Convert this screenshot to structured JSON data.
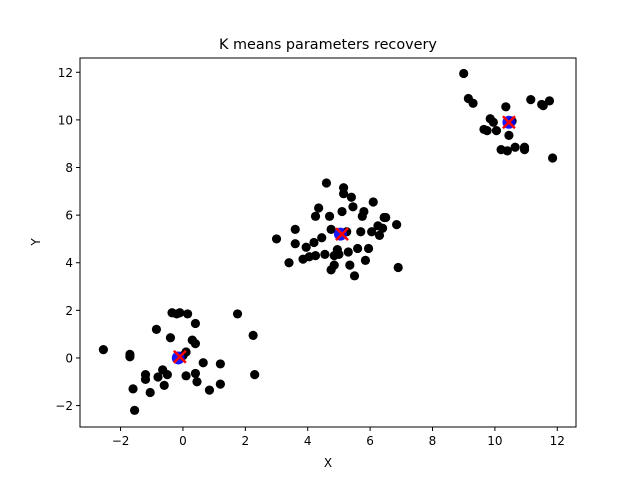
{
  "chart_data": {
    "type": "scatter",
    "title": "K means parameters recovery",
    "xlabel": "X",
    "ylabel": "Y",
    "xlim": [
      -3.3,
      12.6
    ],
    "ylim": [
      -2.9,
      12.6
    ],
    "xticks": [
      -2,
      0,
      2,
      4,
      6,
      8,
      10,
      12
    ],
    "yticks": [
      -2,
      0,
      2,
      4,
      6,
      8,
      10,
      12
    ],
    "grid": false,
    "legend": "none",
    "series": [
      {
        "role": "data-points",
        "color": "#000000",
        "marker": "circle",
        "points": [
          [
            -2.55,
            0.35
          ],
          [
            -1.7,
            0.15
          ],
          [
            -1.7,
            0.05
          ],
          [
            -1.6,
            -1.3
          ],
          [
            -1.55,
            -2.2
          ],
          [
            -1.2,
            -0.7
          ],
          [
            -1.2,
            -0.9
          ],
          [
            -1.05,
            -1.45
          ],
          [
            -0.85,
            1.2
          ],
          [
            -0.8,
            -0.8
          ],
          [
            -0.65,
            -0.5
          ],
          [
            -0.6,
            -1.15
          ],
          [
            -0.5,
            -0.7
          ],
          [
            -0.4,
            0.85
          ],
          [
            -0.35,
            1.9
          ],
          [
            -0.2,
            1.85
          ],
          [
            -0.1,
            1.9
          ],
          [
            0.0,
            0.1
          ],
          [
            0.1,
            0.25
          ],
          [
            0.15,
            1.85
          ],
          [
            0.1,
            -0.75
          ],
          [
            0.3,
            0.75
          ],
          [
            0.4,
            0.6
          ],
          [
            0.4,
            1.45
          ],
          [
            0.4,
            -0.65
          ],
          [
            0.45,
            -1.0
          ],
          [
            0.65,
            -0.2
          ],
          [
            0.85,
            -1.35
          ],
          [
            1.2,
            -0.25
          ],
          [
            1.2,
            -1.1
          ],
          [
            1.75,
            1.85
          ],
          [
            2.25,
            0.95
          ],
          [
            2.3,
            -0.7
          ],
          [
            3.0,
            5.0
          ],
          [
            3.4,
            4.0
          ],
          [
            3.6,
            5.4
          ],
          [
            3.6,
            4.8
          ],
          [
            3.85,
            4.15
          ],
          [
            3.95,
            4.65
          ],
          [
            4.05,
            4.25
          ],
          [
            4.2,
            4.85
          ],
          [
            4.25,
            4.3
          ],
          [
            4.25,
            5.95
          ],
          [
            4.35,
            6.3
          ],
          [
            4.45,
            5.05
          ],
          [
            4.55,
            4.35
          ],
          [
            4.6,
            7.35
          ],
          [
            4.7,
            5.95
          ],
          [
            4.75,
            5.4
          ],
          [
            4.75,
            3.7
          ],
          [
            4.85,
            4.3
          ],
          [
            4.85,
            3.9
          ],
          [
            4.95,
            4.55
          ],
          [
            5.0,
            4.35
          ],
          [
            5.1,
            6.15
          ],
          [
            5.15,
            7.15
          ],
          [
            5.15,
            6.9
          ],
          [
            5.25,
            5.3
          ],
          [
            5.3,
            4.45
          ],
          [
            5.35,
            3.9
          ],
          [
            5.4,
            6.75
          ],
          [
            5.45,
            6.35
          ],
          [
            5.5,
            3.45
          ],
          [
            5.6,
            4.6
          ],
          [
            5.7,
            5.3
          ],
          [
            5.75,
            5.95
          ],
          [
            5.8,
            6.15
          ],
          [
            5.85,
            4.1
          ],
          [
            5.95,
            4.6
          ],
          [
            6.05,
            5.3
          ],
          [
            6.1,
            6.55
          ],
          [
            6.25,
            5.55
          ],
          [
            6.3,
            5.15
          ],
          [
            6.4,
            5.45
          ],
          [
            6.45,
            5.9
          ],
          [
            6.5,
            5.9
          ],
          [
            6.85,
            5.6
          ],
          [
            6.9,
            3.8
          ],
          [
            9.0,
            11.95
          ],
          [
            9.15,
            10.9
          ],
          [
            9.3,
            10.7
          ],
          [
            9.65,
            9.6
          ],
          [
            9.75,
            9.55
          ],
          [
            9.85,
            10.05
          ],
          [
            9.95,
            9.9
          ],
          [
            10.05,
            9.55
          ],
          [
            10.2,
            8.75
          ],
          [
            10.35,
            10.55
          ],
          [
            10.4,
            8.7
          ],
          [
            10.45,
            9.35
          ],
          [
            10.55,
            9.95
          ],
          [
            10.65,
            8.85
          ],
          [
            10.95,
            8.85
          ],
          [
            10.95,
            8.75
          ],
          [
            11.15,
            10.85
          ],
          [
            11.5,
            10.65
          ],
          [
            11.55,
            10.6
          ],
          [
            11.75,
            10.8
          ],
          [
            11.85,
            8.4
          ]
        ]
      },
      {
        "role": "true-centers",
        "color": "#ff0000",
        "marker": "x",
        "points": [
          [
            -0.1,
            0.05
          ],
          [
            5.1,
            5.2
          ],
          [
            10.45,
            9.9
          ]
        ]
      },
      {
        "role": "estimated-centers",
        "color": "#0000ff",
        "marker": "circle",
        "points": [
          [
            -0.15,
            0.0
          ],
          [
            5.05,
            5.2
          ],
          [
            10.45,
            9.9
          ]
        ]
      }
    ]
  }
}
